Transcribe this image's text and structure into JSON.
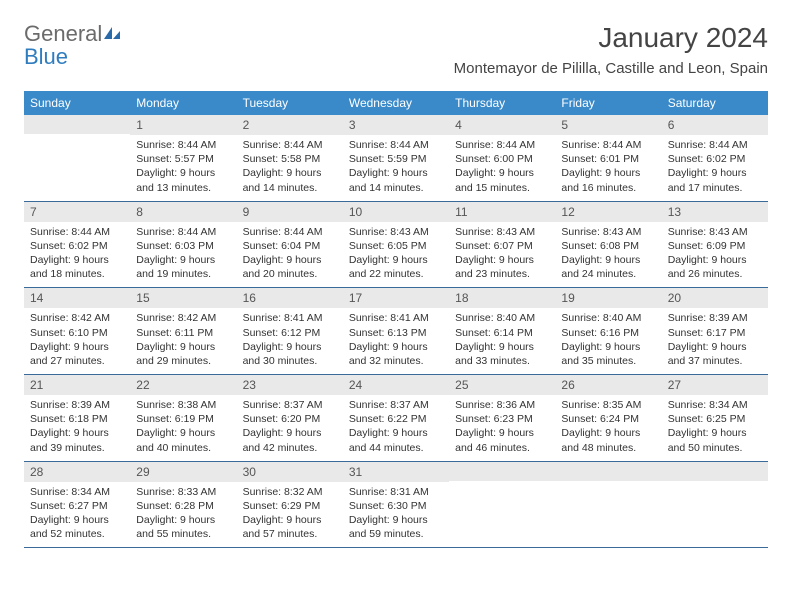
{
  "brand": {
    "general": "General",
    "blue": "Blue"
  },
  "title": "January 2024",
  "location": "Montemayor de Pililla, Castille and Leon, Spain",
  "colors": {
    "header_bg": "#3a89c9",
    "header_text": "#ffffff",
    "daynum_bg": "#e9e9e9",
    "week_border": "#3a6a9a",
    "logo_gray": "#6b6b6b",
    "logo_blue": "#2f7dbf",
    "text": "#333333"
  },
  "day_names": [
    "Sunday",
    "Monday",
    "Tuesday",
    "Wednesday",
    "Thursday",
    "Friday",
    "Saturday"
  ],
  "weeks": [
    [
      {
        "n": "",
        "sr": "",
        "ss": "",
        "dl": ""
      },
      {
        "n": "1",
        "sr": "Sunrise: 8:44 AM",
        "ss": "Sunset: 5:57 PM",
        "dl": "Daylight: 9 hours and 13 minutes."
      },
      {
        "n": "2",
        "sr": "Sunrise: 8:44 AM",
        "ss": "Sunset: 5:58 PM",
        "dl": "Daylight: 9 hours and 14 minutes."
      },
      {
        "n": "3",
        "sr": "Sunrise: 8:44 AM",
        "ss": "Sunset: 5:59 PM",
        "dl": "Daylight: 9 hours and 14 minutes."
      },
      {
        "n": "4",
        "sr": "Sunrise: 8:44 AM",
        "ss": "Sunset: 6:00 PM",
        "dl": "Daylight: 9 hours and 15 minutes."
      },
      {
        "n": "5",
        "sr": "Sunrise: 8:44 AM",
        "ss": "Sunset: 6:01 PM",
        "dl": "Daylight: 9 hours and 16 minutes."
      },
      {
        "n": "6",
        "sr": "Sunrise: 8:44 AM",
        "ss": "Sunset: 6:02 PM",
        "dl": "Daylight: 9 hours and 17 minutes."
      }
    ],
    [
      {
        "n": "7",
        "sr": "Sunrise: 8:44 AM",
        "ss": "Sunset: 6:02 PM",
        "dl": "Daylight: 9 hours and 18 minutes."
      },
      {
        "n": "8",
        "sr": "Sunrise: 8:44 AM",
        "ss": "Sunset: 6:03 PM",
        "dl": "Daylight: 9 hours and 19 minutes."
      },
      {
        "n": "9",
        "sr": "Sunrise: 8:44 AM",
        "ss": "Sunset: 6:04 PM",
        "dl": "Daylight: 9 hours and 20 minutes."
      },
      {
        "n": "10",
        "sr": "Sunrise: 8:43 AM",
        "ss": "Sunset: 6:05 PM",
        "dl": "Daylight: 9 hours and 22 minutes."
      },
      {
        "n": "11",
        "sr": "Sunrise: 8:43 AM",
        "ss": "Sunset: 6:07 PM",
        "dl": "Daylight: 9 hours and 23 minutes."
      },
      {
        "n": "12",
        "sr": "Sunrise: 8:43 AM",
        "ss": "Sunset: 6:08 PM",
        "dl": "Daylight: 9 hours and 24 minutes."
      },
      {
        "n": "13",
        "sr": "Sunrise: 8:43 AM",
        "ss": "Sunset: 6:09 PM",
        "dl": "Daylight: 9 hours and 26 minutes."
      }
    ],
    [
      {
        "n": "14",
        "sr": "Sunrise: 8:42 AM",
        "ss": "Sunset: 6:10 PM",
        "dl": "Daylight: 9 hours and 27 minutes."
      },
      {
        "n": "15",
        "sr": "Sunrise: 8:42 AM",
        "ss": "Sunset: 6:11 PM",
        "dl": "Daylight: 9 hours and 29 minutes."
      },
      {
        "n": "16",
        "sr": "Sunrise: 8:41 AM",
        "ss": "Sunset: 6:12 PM",
        "dl": "Daylight: 9 hours and 30 minutes."
      },
      {
        "n": "17",
        "sr": "Sunrise: 8:41 AM",
        "ss": "Sunset: 6:13 PM",
        "dl": "Daylight: 9 hours and 32 minutes."
      },
      {
        "n": "18",
        "sr": "Sunrise: 8:40 AM",
        "ss": "Sunset: 6:14 PM",
        "dl": "Daylight: 9 hours and 33 minutes."
      },
      {
        "n": "19",
        "sr": "Sunrise: 8:40 AM",
        "ss": "Sunset: 6:16 PM",
        "dl": "Daylight: 9 hours and 35 minutes."
      },
      {
        "n": "20",
        "sr": "Sunrise: 8:39 AM",
        "ss": "Sunset: 6:17 PM",
        "dl": "Daylight: 9 hours and 37 minutes."
      }
    ],
    [
      {
        "n": "21",
        "sr": "Sunrise: 8:39 AM",
        "ss": "Sunset: 6:18 PM",
        "dl": "Daylight: 9 hours and 39 minutes."
      },
      {
        "n": "22",
        "sr": "Sunrise: 8:38 AM",
        "ss": "Sunset: 6:19 PM",
        "dl": "Daylight: 9 hours and 40 minutes."
      },
      {
        "n": "23",
        "sr": "Sunrise: 8:37 AM",
        "ss": "Sunset: 6:20 PM",
        "dl": "Daylight: 9 hours and 42 minutes."
      },
      {
        "n": "24",
        "sr": "Sunrise: 8:37 AM",
        "ss": "Sunset: 6:22 PM",
        "dl": "Daylight: 9 hours and 44 minutes."
      },
      {
        "n": "25",
        "sr": "Sunrise: 8:36 AM",
        "ss": "Sunset: 6:23 PM",
        "dl": "Daylight: 9 hours and 46 minutes."
      },
      {
        "n": "26",
        "sr": "Sunrise: 8:35 AM",
        "ss": "Sunset: 6:24 PM",
        "dl": "Daylight: 9 hours and 48 minutes."
      },
      {
        "n": "27",
        "sr": "Sunrise: 8:34 AM",
        "ss": "Sunset: 6:25 PM",
        "dl": "Daylight: 9 hours and 50 minutes."
      }
    ],
    [
      {
        "n": "28",
        "sr": "Sunrise: 8:34 AM",
        "ss": "Sunset: 6:27 PM",
        "dl": "Daylight: 9 hours and 52 minutes."
      },
      {
        "n": "29",
        "sr": "Sunrise: 8:33 AM",
        "ss": "Sunset: 6:28 PM",
        "dl": "Daylight: 9 hours and 55 minutes."
      },
      {
        "n": "30",
        "sr": "Sunrise: 8:32 AM",
        "ss": "Sunset: 6:29 PM",
        "dl": "Daylight: 9 hours and 57 minutes."
      },
      {
        "n": "31",
        "sr": "Sunrise: 8:31 AM",
        "ss": "Sunset: 6:30 PM",
        "dl": "Daylight: 9 hours and 59 minutes."
      },
      {
        "n": "",
        "sr": "",
        "ss": "",
        "dl": ""
      },
      {
        "n": "",
        "sr": "",
        "ss": "",
        "dl": ""
      },
      {
        "n": "",
        "sr": "",
        "ss": "",
        "dl": ""
      }
    ]
  ]
}
